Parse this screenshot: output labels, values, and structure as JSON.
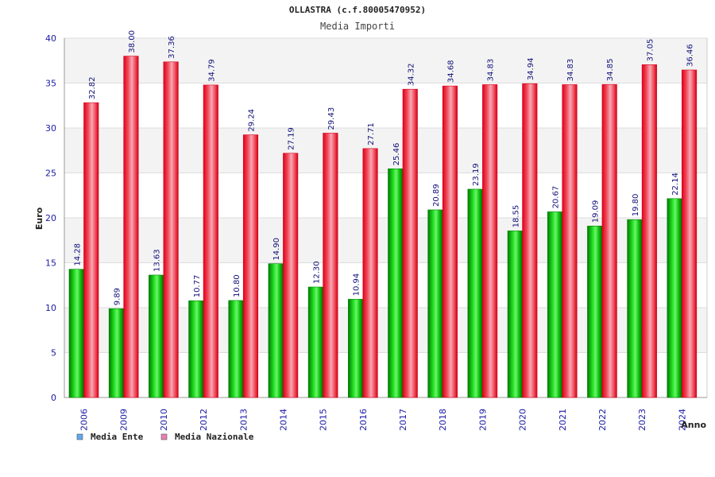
{
  "chart_data": {
    "type": "bar",
    "title": "OLLASTRA (c.f.80005470952)",
    "subtitle": "Media Importi",
    "xlabel": "Anno",
    "ylabel": "Euro",
    "ylim": [
      0,
      40
    ],
    "yticks": [
      0,
      5,
      10,
      15,
      20,
      25,
      30,
      35,
      40
    ],
    "grid": true,
    "legend_position": "bottom-left",
    "categories": [
      "2006",
      "2009",
      "2010",
      "2012",
      "2013",
      "2014",
      "2015",
      "2016",
      "2017",
      "2018",
      "2019",
      "2020",
      "2021",
      "2022",
      "2023",
      "2024"
    ],
    "series": [
      {
        "name": "Media Ente",
        "color": "#00a000",
        "legend_color": "#5fa8f0",
        "values": [
          14.28,
          9.89,
          13.63,
          10.77,
          10.8,
          14.9,
          12.3,
          10.94,
          25.46,
          20.89,
          23.19,
          18.55,
          20.67,
          19.09,
          19.8,
          22.14
        ],
        "labels": [
          "14.28",
          "9.89",
          "13.63",
          "10.77",
          "10.80",
          "14.90",
          "12.30",
          "10.94",
          "25.46",
          "20.89",
          "23.19",
          "18.55",
          "20.67",
          "19.09",
          "19.80",
          "22.14"
        ]
      },
      {
        "name": "Media Nazionale",
        "color": "#e8001c",
        "legend_color": "#e880b0",
        "values": [
          32.82,
          38.0,
          37.36,
          34.79,
          29.24,
          27.19,
          29.43,
          27.71,
          34.32,
          34.68,
          34.83,
          34.94,
          34.83,
          34.85,
          37.05,
          36.46
        ],
        "labels": [
          "32.82",
          "38.00",
          "37.36",
          "34.79",
          "29.24",
          "27.19",
          "29.43",
          "27.71",
          "34.32",
          "34.68",
          "34.83",
          "34.94",
          "34.83",
          "34.85",
          "37.05",
          "36.46"
        ]
      }
    ]
  }
}
